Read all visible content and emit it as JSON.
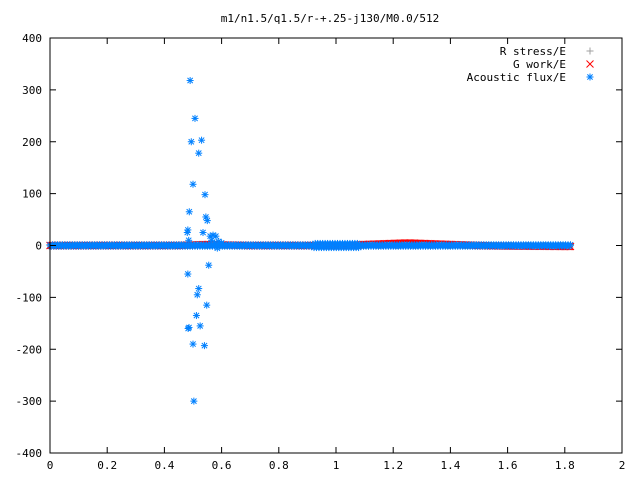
{
  "chart_data": {
    "type": "scatter",
    "title": "m1/n1.5/q1.5/r-+.25-j130/M0.0/512",
    "xlabel": "",
    "ylabel": "",
    "xlim": [
      0,
      2
    ],
    "ylim": [
      -400,
      400
    ],
    "x_ticks": [
      "0",
      "0.2",
      "0.4",
      "0.6",
      "0.8",
      "1",
      "1.2",
      "1.4",
      "1.6",
      "1.8",
      "2"
    ],
    "y_ticks": [
      "400",
      "300",
      "200",
      "100",
      "0",
      "-100",
      "-200",
      "-300",
      "-400"
    ],
    "grid": false,
    "legend_position": "top-right",
    "series": [
      {
        "name": "R stress/E",
        "marker": "plus",
        "color": "#a0a0a0",
        "x_range": [
          0,
          1.82
        ],
        "y": 0
      },
      {
        "name": "G work/E",
        "marker": "cross",
        "color": "#ff0000",
        "x_range": [
          0,
          1.82
        ],
        "profile": [
          [
            0.0,
            0
          ],
          [
            0.45,
            0
          ],
          [
            0.5,
            1
          ],
          [
            0.55,
            2
          ],
          [
            0.6,
            1
          ],
          [
            0.7,
            0
          ],
          [
            0.95,
            0
          ],
          [
            1.0,
            -1
          ],
          [
            1.05,
            0
          ],
          [
            1.1,
            2
          ],
          [
            1.2,
            4
          ],
          [
            1.25,
            5
          ],
          [
            1.3,
            4
          ],
          [
            1.4,
            2
          ],
          [
            1.5,
            0
          ],
          [
            1.6,
            -1
          ],
          [
            1.82,
            -2
          ]
        ]
      },
      {
        "name": "Acoustic flux/E",
        "marker": "star",
        "color": "#0080ff",
        "x_range": [
          0,
          1.82
        ],
        "points": [
          [
            0.48,
            25
          ],
          [
            0.482,
            30
          ],
          [
            0.485,
            10
          ],
          [
            0.482,
            -55
          ],
          [
            0.483,
            -160
          ],
          [
            0.486,
            -158
          ],
          [
            0.487,
            65
          ],
          [
            0.49,
            318
          ],
          [
            0.494,
            200
          ],
          [
            0.5,
            118
          ],
          [
            0.5,
            -190
          ],
          [
            0.503,
            -300
          ],
          [
            0.507,
            245
          ],
          [
            0.512,
            -135
          ],
          [
            0.515,
            -95
          ],
          [
            0.52,
            178
          ],
          [
            0.52,
            -83
          ],
          [
            0.525,
            -155
          ],
          [
            0.53,
            203
          ],
          [
            0.535,
            25
          ],
          [
            0.54,
            -193
          ],
          [
            0.542,
            98
          ],
          [
            0.545,
            55
          ],
          [
            0.548,
            -115
          ],
          [
            0.55,
            48
          ],
          [
            0.555,
            -38
          ],
          [
            0.56,
            18
          ],
          [
            0.565,
            10
          ],
          [
            0.57,
            20
          ],
          [
            0.575,
            5
          ],
          [
            0.58,
            18
          ],
          [
            0.585,
            -5
          ],
          [
            0.59,
            8
          ],
          [
            0.6,
            5
          ]
        ]
      }
    ]
  }
}
